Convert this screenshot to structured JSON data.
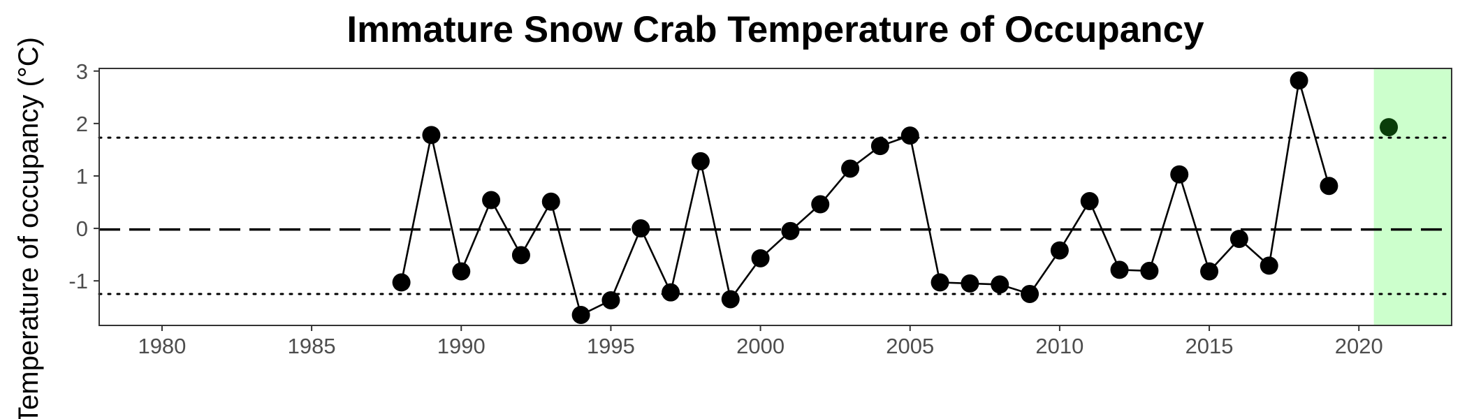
{
  "chart_data": {
    "type": "line",
    "title": "Immature Snow Crab Temperature of Occupancy",
    "ylabel": "Temperature of occupancy (°C)",
    "xlabel": "",
    "xlim": [
      1977.9,
      2023.1
    ],
    "ylim": [
      -1.85,
      3.05
    ],
    "x_ticks": [
      1980,
      1985,
      1990,
      1995,
      2000,
      2005,
      2010,
      2015,
      2020
    ],
    "y_ticks": [
      -1,
      0,
      1,
      2,
      3
    ],
    "y_tick_labels": [
      "-1",
      "0",
      "1",
      "2",
      "3"
    ],
    "grid": false,
    "series": [
      {
        "values": [
          {
            "x": 1988,
            "y": -1.03
          },
          {
            "x": 1989,
            "y": 1.78
          },
          {
            "x": 1990,
            "y": -0.82
          },
          {
            "x": 1991,
            "y": 0.54
          },
          {
            "x": 1992,
            "y": -0.51
          },
          {
            "x": 1993,
            "y": 0.51
          },
          {
            "x": 1994,
            "y": -1.65
          },
          {
            "x": 1995,
            "y": -1.37
          },
          {
            "x": 1996,
            "y": 0.0
          },
          {
            "x": 1997,
            "y": -1.22
          },
          {
            "x": 1998,
            "y": 1.28
          },
          {
            "x": 1999,
            "y": -1.35
          },
          {
            "x": 2000,
            "y": -0.57
          },
          {
            "x": 2001,
            "y": -0.05
          },
          {
            "x": 2002,
            "y": 0.46
          },
          {
            "x": 2003,
            "y": 1.14
          },
          {
            "x": 2004,
            "y": 1.57
          },
          {
            "x": 2005,
            "y": 1.77
          },
          {
            "x": 2006,
            "y": -1.03
          },
          {
            "x": 2007,
            "y": -1.05
          },
          {
            "x": 2008,
            "y": -1.07
          },
          {
            "x": 2009,
            "y": -1.25
          },
          {
            "x": 2010,
            "y": -0.42
          },
          {
            "x": 2011,
            "y": 0.52
          },
          {
            "x": 2012,
            "y": -0.79
          },
          {
            "x": 2013,
            "y": -0.81
          },
          {
            "x": 2014,
            "y": 1.03
          },
          {
            "x": 2015,
            "y": -0.82
          },
          {
            "x": 2016,
            "y": -0.2
          },
          {
            "x": 2017,
            "y": -0.71
          },
          {
            "x": 2018,
            "y": 2.82
          },
          {
            "x": 2019,
            "y": 0.81
          }
        ]
      }
    ],
    "highlight_point": {
      "x": 2021,
      "y": 1.93
    },
    "highlight_region": {
      "x_from": 2020.5,
      "x_to": 2023.1
    },
    "reference_lines": {
      "mean": -0.02,
      "upper": 1.73,
      "lower": -1.25
    },
    "colors": {
      "points": "#000000",
      "highlight_point": "#0a3d0a",
      "highlight_region": "#ccffcc",
      "tick_label": "#4d4d4d"
    }
  }
}
